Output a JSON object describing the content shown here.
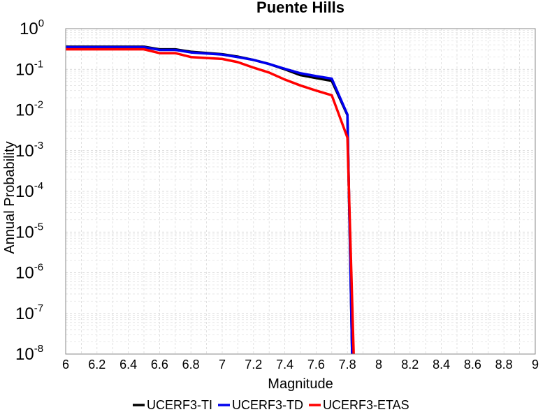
{
  "chart_data": {
    "type": "line",
    "title": "Puente Hills",
    "xlabel": "Magnitude",
    "ylabel": "Annual Probability",
    "xlim": [
      6,
      9
    ],
    "ylim": [
      1e-08,
      1
    ],
    "yscale": "log",
    "grid": true,
    "legend_position": "bottom",
    "x_ticks": [
      "6",
      "6.2",
      "6.4",
      "6.6",
      "6.8",
      "7",
      "7.2",
      "7.4",
      "7.6",
      "7.8",
      "8",
      "8.2",
      "8.4",
      "8.6",
      "8.8",
      "9"
    ],
    "y_ticks": [
      {
        "base": "10",
        "exp": "0"
      },
      {
        "base": "10",
        "exp": "-1"
      },
      {
        "base": "10",
        "exp": "-2"
      },
      {
        "base": "10",
        "exp": "-3"
      },
      {
        "base": "10",
        "exp": "-4"
      },
      {
        "base": "10",
        "exp": "-5"
      },
      {
        "base": "10",
        "exp": "-6"
      },
      {
        "base": "10",
        "exp": "-7"
      },
      {
        "base": "10",
        "exp": "-8"
      }
    ],
    "series": [
      {
        "name": "UCERF3-TI",
        "color": "#000000",
        "x": [
          6.0,
          6.5,
          6.6,
          6.7,
          6.8,
          7.0,
          7.1,
          7.2,
          7.3,
          7.4,
          7.5,
          7.6,
          7.7,
          7.8,
          7.83
        ],
        "y": [
          0.36,
          0.36,
          0.31,
          0.31,
          0.27,
          0.235,
          0.205,
          0.17,
          0.135,
          0.1,
          0.072,
          0.061,
          0.052,
          0.0075,
          1e-08
        ]
      },
      {
        "name": "UCERF3-TD",
        "color": "#0000ee",
        "x": [
          6.0,
          6.5,
          6.6,
          6.7,
          6.8,
          7.0,
          7.1,
          7.2,
          7.3,
          7.4,
          7.5,
          7.6,
          7.7,
          7.8,
          7.83
        ],
        "y": [
          0.35,
          0.35,
          0.3,
          0.3,
          0.26,
          0.23,
          0.2,
          0.17,
          0.135,
          0.103,
          0.08,
          0.068,
          0.059,
          0.0077,
          1e-08
        ]
      },
      {
        "name": "UCERF3-ETAS",
        "color": "#ff0000",
        "x": [
          6.0,
          6.5,
          6.6,
          6.7,
          6.8,
          7.0,
          7.1,
          7.2,
          7.3,
          7.4,
          7.5,
          7.6,
          7.7,
          7.8,
          7.84
        ],
        "y": [
          0.31,
          0.31,
          0.25,
          0.25,
          0.2,
          0.18,
          0.15,
          0.11,
          0.083,
          0.056,
          0.04,
          0.03,
          0.023,
          0.0021,
          1e-08
        ]
      }
    ]
  }
}
